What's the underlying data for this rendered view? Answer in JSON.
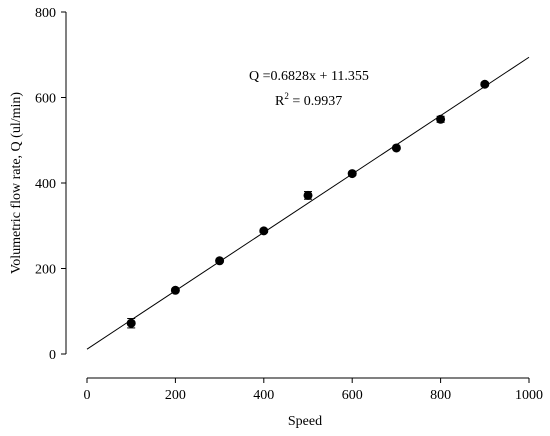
{
  "chart_data": {
    "type": "scatter",
    "xlabel": "Speed",
    "ylabel": "Volumetric flow rate, Q (ul/min)",
    "x": [
      100,
      200,
      300,
      400,
      500,
      600,
      700,
      800,
      900
    ],
    "series": [
      {
        "color": "#000000",
        "values": [
          72,
          149,
          218,
          288,
          371,
          422,
          482,
          549,
          631
        ],
        "errors": [
          11,
          4,
          4,
          4,
          9,
          4,
          4,
          7,
          4
        ]
      }
    ],
    "xlim": [
      0,
      1000
    ],
    "xticks": [
      0,
      200,
      400,
      600,
      800,
      1000
    ],
    "ylim": [
      0,
      800
    ],
    "yticks": [
      0,
      200,
      400,
      600,
      800
    ],
    "trendline": {
      "slope": 0.6828,
      "intercept": 11.355,
      "color": "#000000",
      "equation": "Q =0.6828x + 11.355",
      "r_squared": {
        "symbol": "R",
        "exponent": "2",
        "text": " = 0.9937"
      }
    }
  }
}
